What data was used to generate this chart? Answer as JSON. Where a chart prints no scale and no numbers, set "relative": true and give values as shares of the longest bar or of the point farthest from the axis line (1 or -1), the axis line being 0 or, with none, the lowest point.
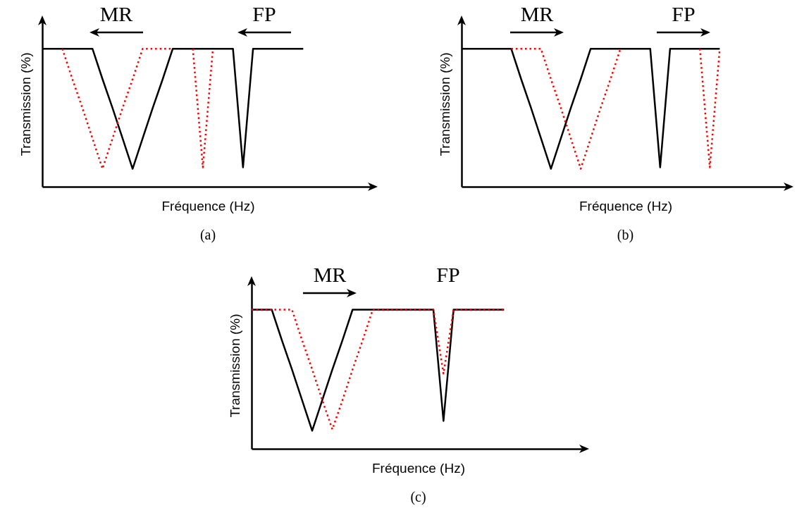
{
  "chart_data": [
    {
      "type": "line",
      "title": "(a)",
      "xlabel": "Fréquence (Hz)",
      "ylabel": "Transmission (%)",
      "relative": true,
      "tick_labels": false,
      "categories": [
        null,
        null,
        null,
        null,
        null,
        null,
        null,
        null,
        null,
        null,
        null,
        null,
        null,
        null,
        null,
        null,
        null,
        null,
        null,
        null,
        null,
        null,
        null,
        null,
        null,
        null,
        null,
        null,
        null,
        null,
        null,
        null,
        null,
        null
      ],
      "annotations": [
        "MR",
        "FP"
      ],
      "series": [
        {
          "color": "#000000",
          "line_style": "solid",
          "values": [
            1,
            1,
            1,
            1,
            1,
            1,
            0.78,
            0.57,
            0.35,
            0.13,
            0.35,
            0.57,
            0.78,
            1,
            1,
            1,
            1,
            1,
            1,
            1,
            0.14,
            1,
            1,
            1,
            1,
            1,
            1,
            null,
            null,
            null,
            null,
            null,
            null,
            null
          ]
        },
        {
          "color": "#ff0000",
          "line_style": "dotted",
          "values": [
            null,
            null,
            1,
            0.78,
            0.57,
            0.35,
            0.13,
            0.35,
            0.57,
            0.78,
            1,
            1,
            1,
            1,
            null,
            1,
            0.14,
            1,
            null,
            null,
            null,
            null,
            null,
            null,
            null,
            null,
            null,
            null,
            null,
            null,
            null,
            null,
            null,
            null
          ]
        }
      ]
    },
    {
      "type": "line",
      "title": "(b)",
      "xlabel": "Fréquence (Hz)",
      "ylabel": "Transmission (%)",
      "relative": true,
      "tick_labels": false,
      "categories": [
        null,
        null,
        null,
        null,
        null,
        null,
        null,
        null,
        null,
        null,
        null,
        null,
        null,
        null,
        null,
        null,
        null,
        null,
        null,
        null,
        null,
        null,
        null,
        null,
        null,
        null,
        null,
        null,
        null,
        null,
        null,
        null,
        null,
        null
      ],
      "annotations": [
        "MR",
        "FP"
      ],
      "series": [
        {
          "color": "#000000",
          "line_style": "solid",
          "values": [
            1,
            1,
            1,
            1,
            1,
            1,
            0.78,
            0.57,
            0.35,
            0.13,
            0.35,
            0.57,
            0.78,
            1,
            1,
            1,
            1,
            1,
            1,
            1,
            0.14,
            1,
            1,
            1,
            1,
            1,
            1,
            null,
            null,
            null,
            null,
            null,
            null,
            null
          ]
        },
        {
          "color": "#ff0000",
          "line_style": "dotted",
          "values": [
            null,
            null,
            null,
            null,
            null,
            1,
            1,
            1,
            1,
            0.78,
            0.57,
            0.35,
            0.13,
            0.35,
            0.57,
            0.78,
            1,
            null,
            null,
            null,
            null,
            null,
            null,
            null,
            1,
            0.14,
            1,
            null,
            null,
            null,
            null,
            null,
            null,
            null
          ]
        }
      ]
    },
    {
      "type": "line",
      "title": "(c)",
      "xlabel": "Fréquence (Hz)",
      "ylabel": "Transmission (%)",
      "relative": true,
      "tick_labels": false,
      "categories": [
        null,
        null,
        null,
        null,
        null,
        null,
        null,
        null,
        null,
        null,
        null,
        null,
        null,
        null,
        null,
        null,
        null,
        null,
        null,
        null,
        null,
        null,
        null,
        null,
        null,
        null,
        null,
        null,
        null,
        null,
        null,
        null,
        null,
        null
      ],
      "annotations": [
        "MR",
        "FP"
      ],
      "series": [
        {
          "color": "#000000",
          "line_style": "solid",
          "values": [
            1,
            1,
            1,
            0.78,
            0.57,
            0.35,
            0.13,
            0.35,
            0.57,
            0.78,
            1,
            1,
            1,
            1,
            1,
            1,
            1,
            1,
            1,
            0.2,
            1,
            1,
            1,
            1,
            1,
            1,
            null,
            null,
            null,
            null,
            null,
            null,
            null,
            null
          ]
        },
        {
          "color": "#ff0000",
          "line_style": "dotted",
          "values": [
            1,
            1,
            1,
            1,
            1,
            0.78,
            0.57,
            0.35,
            0.14,
            0.35,
            0.57,
            0.78,
            1,
            1,
            1,
            1,
            1,
            1,
            1,
            0.54,
            1,
            1,
            1,
            1,
            1,
            1,
            null,
            null,
            null,
            null,
            null,
            null,
            null,
            null
          ]
        }
      ]
    }
  ]
}
